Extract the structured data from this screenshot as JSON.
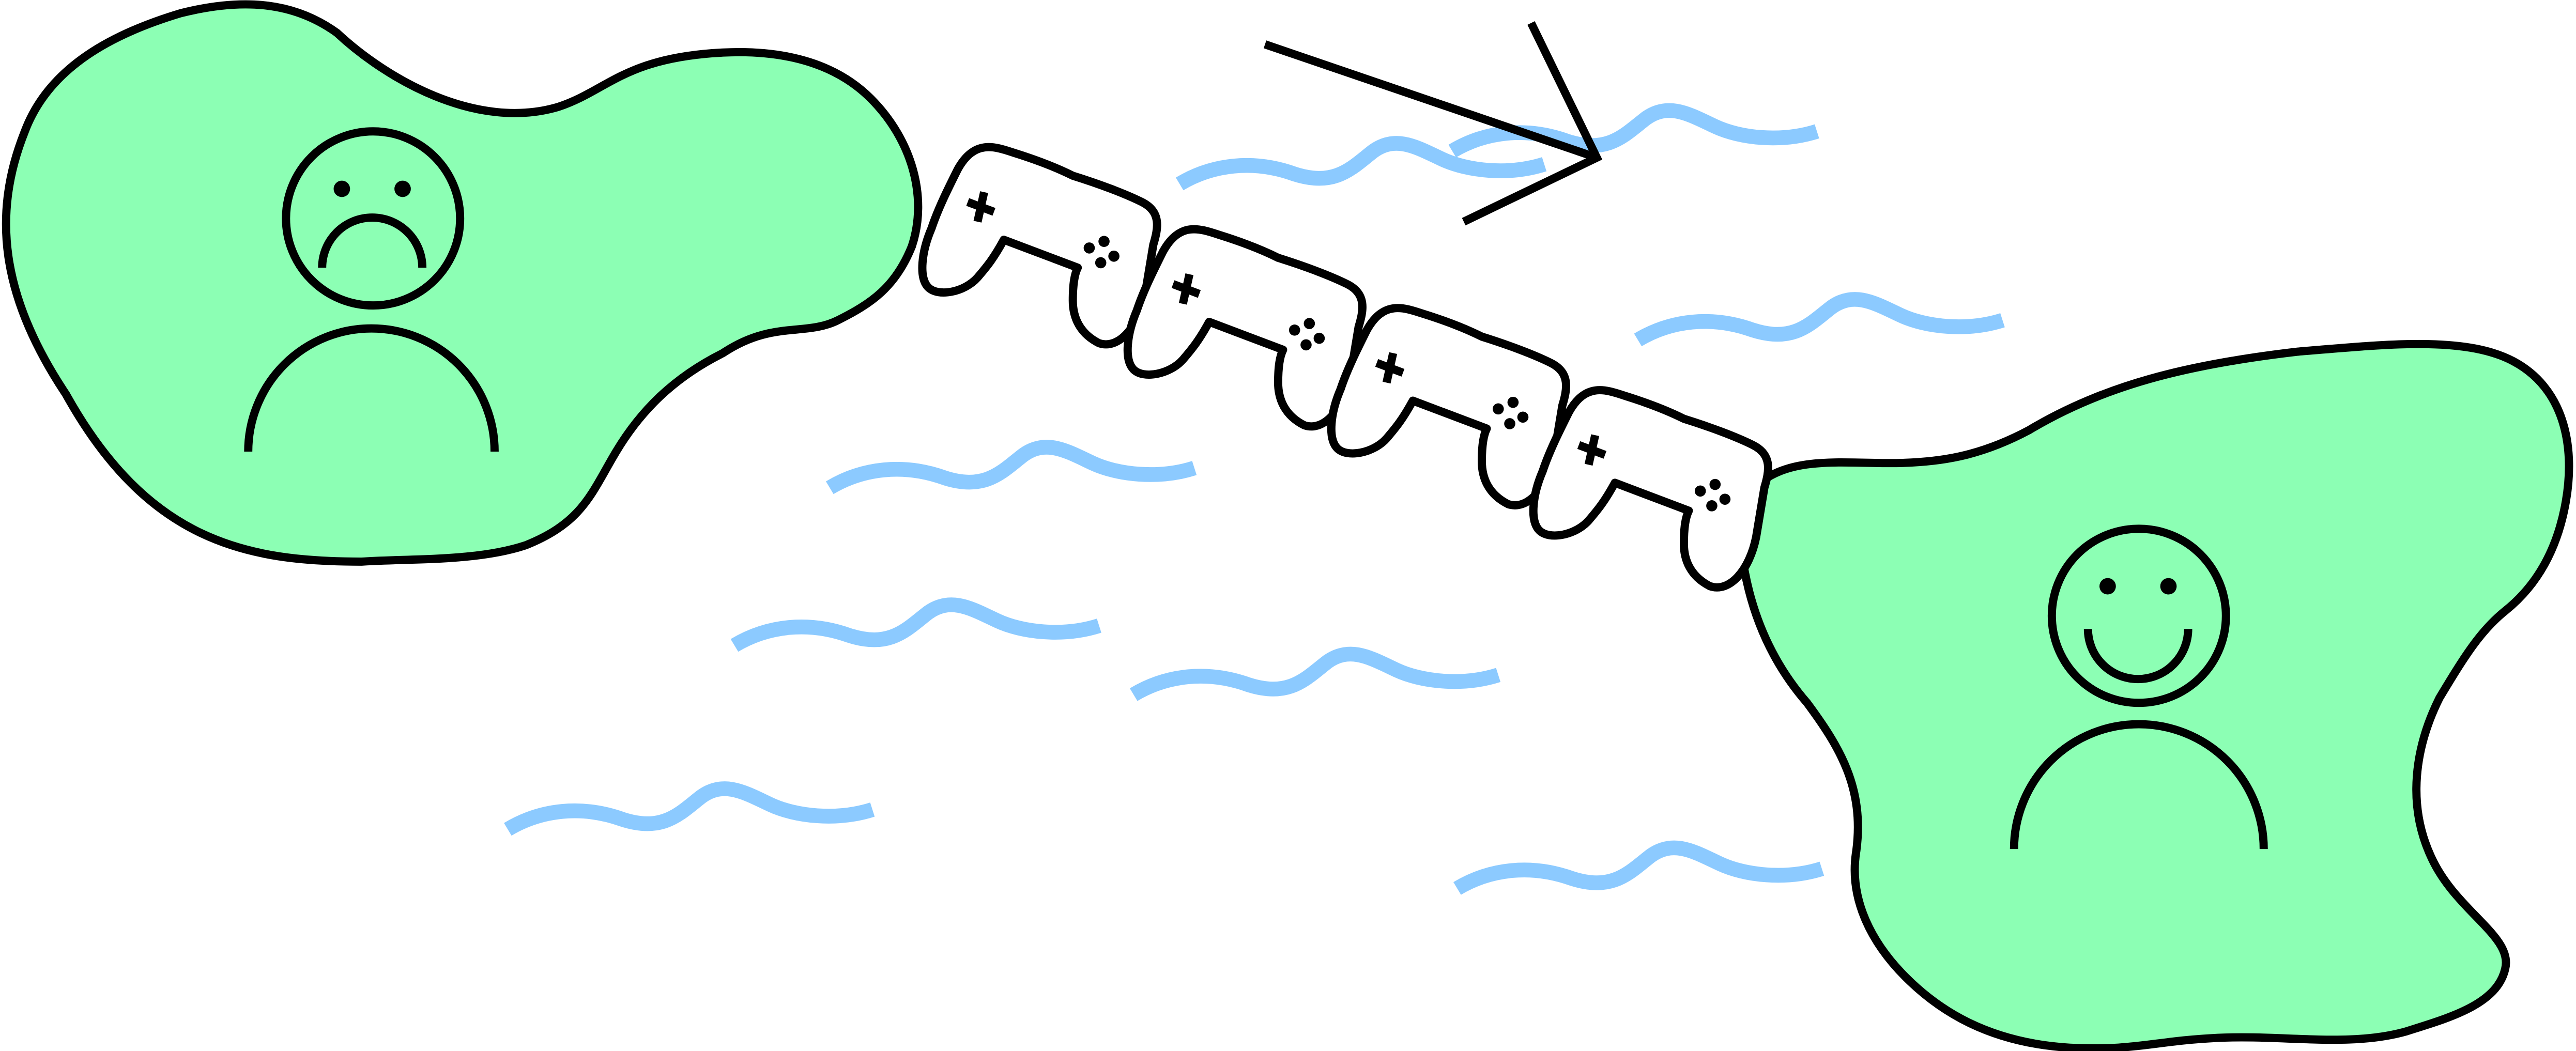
{
  "illustration": {
    "colors": {
      "island_fill": "#8CFFB4",
      "outline": "#000000",
      "water": "#8CCAFF",
      "controller_fill": "#FFFFFF"
    },
    "left_figure": {
      "mood": "sad",
      "icon": "sad-person-icon"
    },
    "right_figure": {
      "mood": "happy",
      "icon": "happy-person-icon"
    },
    "bridge": {
      "controller_count": 4,
      "icon": "game-controller-icon"
    },
    "direction_arrow": {
      "icon": "arrow-right-icon"
    },
    "water_waves": {
      "count": 8,
      "icon": "wave-icon"
    }
  }
}
